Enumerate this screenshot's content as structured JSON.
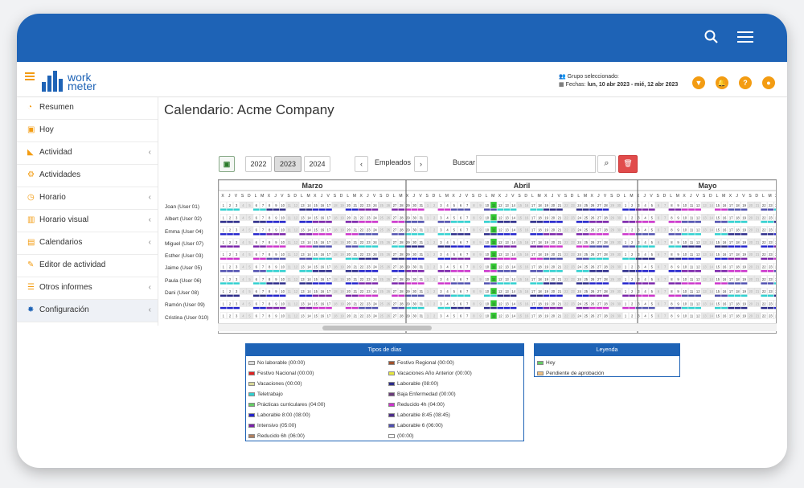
{
  "header": {
    "logo_line1": "work",
    "logo_line2": "meter",
    "group_label": "Grupo seleccionado:",
    "dates_prefix": "Fechas:",
    "dates_value": "lun, 10 abr 2023 - mié, 12 abr 2023"
  },
  "sidebar": {
    "items": [
      {
        "label": "Resumen",
        "icon": "dashboard-icon"
      },
      {
        "label": "Hoy",
        "icon": "calendar-day-icon"
      },
      {
        "label": "Actividad",
        "icon": "area-chart-icon"
      },
      {
        "label": "Actividades",
        "icon": "gears-icon"
      },
      {
        "label": "Horario",
        "icon": "clock-icon"
      },
      {
        "label": "Horario visual",
        "icon": "bar-chart-icon"
      },
      {
        "label": "Calendarios",
        "icon": "calendar-icon"
      },
      {
        "label": "Editor de actividad",
        "icon": "edit-icon"
      },
      {
        "label": "Otros informes",
        "icon": "list-icon"
      },
      {
        "label": "Configuración",
        "icon": "gear-icon"
      }
    ]
  },
  "page": {
    "title": "Calendario: Acme Company",
    "years": [
      "2022",
      "2023",
      "2024"
    ],
    "selected_year": "2023",
    "employees_label": "Empleados",
    "search_label": "Buscar",
    "search_placeholder": ""
  },
  "calendar": {
    "months": [
      "Marzo",
      "Abril",
      "Mayo"
    ],
    "employees": [
      "Joan (User 01)",
      "Albert (User 02)",
      "Emma (User 04)",
      "Miguel (User 07)",
      "Esther (User 03)",
      "Jaime (User 05)",
      "Paula (User 06)",
      "Dani (User 08)",
      "Ramón (User 09)",
      "Cristina (User 010)"
    ],
    "day_letters": [
      "L",
      "M",
      "X",
      "J",
      "V",
      "S",
      "D"
    ],
    "today_color": "#33cc33"
  },
  "day_types": {
    "title": "Tipos de días",
    "items": [
      {
        "label": "No laborable (00:00)",
        "color": "#dddddd"
      },
      {
        "label": "Festivo Regional (00:00)",
        "color": "#a0522d"
      },
      {
        "label": "Festivo Nacional (00:00)",
        "color": "#e02020"
      },
      {
        "label": "Vacaciones Año Anterior (00:00)",
        "color": "#e8e840"
      },
      {
        "label": "Vacaciones (00:00)",
        "color": "#d8d89a"
      },
      {
        "label": "Laborable (08:00)",
        "color": "#2b2b8a"
      },
      {
        "label": "Teletrabajo",
        "color": "#2fd0d0"
      },
      {
        "label": "Baja Enfermedad (00:00)",
        "color": "#6a3a7a"
      },
      {
        "label": "Prácticas curriculares (04:00)",
        "color": "#66cc66"
      },
      {
        "label": "Reducido 4h (04:00)",
        "color": "#cc33cc"
      },
      {
        "label": "Laborable 8:00 (08:00)",
        "color": "#2222cc"
      },
      {
        "label": "Laborable 8:45 (08:45)",
        "color": "#4b2a8a"
      },
      {
        "label": "Intensivo (05:00)",
        "color": "#7a22aa"
      },
      {
        "label": "Laborable 6 (06:00)",
        "color": "#5050b0"
      },
      {
        "label": "Reducido 6h (06:00)",
        "color": "#b08060"
      },
      {
        "label": "(00:00)",
        "color": "#ffffff"
      }
    ]
  },
  "legend": {
    "title": "Leyenda",
    "items": [
      {
        "label": "Hoy",
        "color": "#66cc66"
      },
      {
        "label": "Pendiente de aprobación",
        "color": "#f0c080"
      }
    ]
  }
}
